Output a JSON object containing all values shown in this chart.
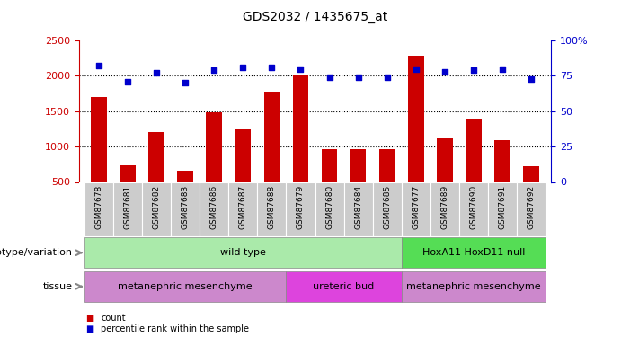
{
  "title": "GDS2032 / 1435675_at",
  "samples": [
    "GSM87678",
    "GSM87681",
    "GSM87682",
    "GSM87683",
    "GSM87686",
    "GSM87687",
    "GSM87688",
    "GSM87679",
    "GSM87680",
    "GSM87684",
    "GSM87685",
    "GSM87677",
    "GSM87689",
    "GSM87690",
    "GSM87691",
    "GSM87692"
  ],
  "counts": [
    1700,
    730,
    1200,
    660,
    1480,
    1260,
    1770,
    2010,
    960,
    960,
    960,
    2280,
    1120,
    1390,
    1090,
    720
  ],
  "percentiles": [
    82,
    71,
    77,
    70,
    79,
    81,
    81,
    80,
    74,
    74,
    74,
    80,
    78,
    79,
    80,
    73
  ],
  "ylim_left": [
    500,
    2500
  ],
  "ylim_right": [
    0,
    100
  ],
  "yticks_left": [
    500,
    1000,
    1500,
    2000,
    2500
  ],
  "yticks_right": [
    0,
    25,
    50,
    75,
    100
  ],
  "hlines": [
    1000,
    1500,
    2000
  ],
  "bar_color": "#cc0000",
  "dot_color": "#0000cc",
  "bar_width": 0.55,
  "genotype_label": "genotype/variation",
  "tissue_label": "tissue",
  "genotype_groups": [
    {
      "label": "wild type",
      "start": 0,
      "end": 10,
      "color": "#aaeaaa"
    },
    {
      "label": "HoxA11 HoxD11 null",
      "start": 11,
      "end": 15,
      "color": "#55dd55"
    }
  ],
  "tissue_groups": [
    {
      "label": "metanephric mesenchyme",
      "start": 0,
      "end": 6,
      "color": "#cc88cc"
    },
    {
      "label": "ureteric bud",
      "start": 7,
      "end": 10,
      "color": "#dd44dd"
    },
    {
      "label": "metanephric mesenchyme",
      "start": 11,
      "end": 15,
      "color": "#cc88cc"
    }
  ],
  "legend_items": [
    {
      "label": "count",
      "color": "#cc0000"
    },
    {
      "label": "percentile rank within the sample",
      "color": "#0000cc"
    }
  ],
  "bg_color": "#ffffff",
  "plot_bg_color": "#ffffff",
  "names_bg_color": "#cccccc",
  "axis_color_left": "#cc0000",
  "axis_color_right": "#0000cc",
  "title_fontsize": 10,
  "tick_fontsize": 8,
  "sample_fontsize": 6.5,
  "anno_fontsize": 8
}
